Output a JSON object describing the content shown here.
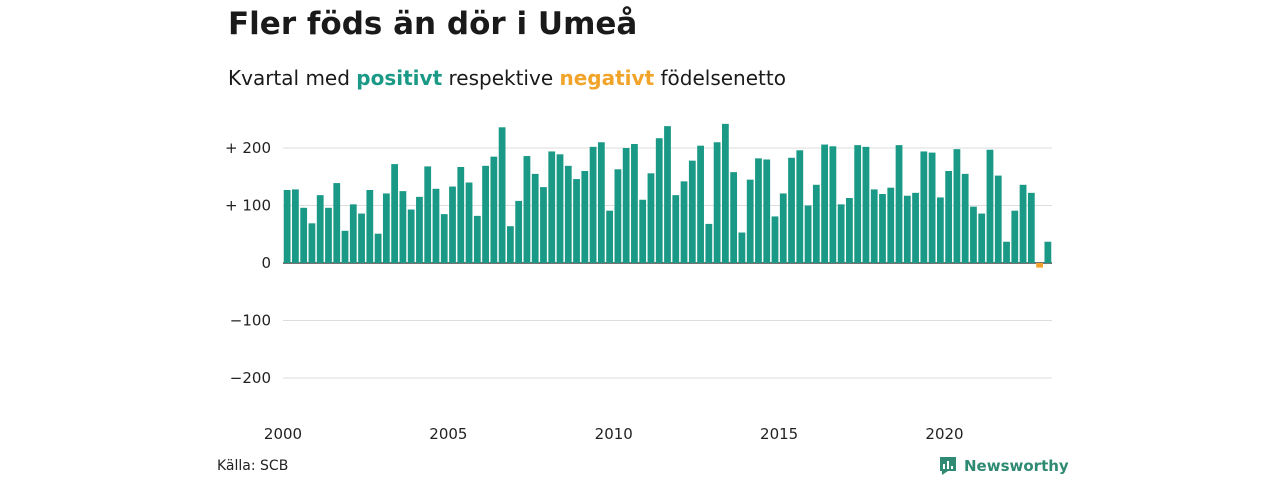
{
  "title": "Fler föds än dör i Umeå",
  "subtitle": {
    "part1": "Kvartal med",
    "positive": "positivt",
    "part2": "respektive",
    "negative": "negativt",
    "part3": "födelsenetto"
  },
  "source": "Källa: SCB",
  "brand": "Newsworthy",
  "colors": {
    "positive": "#1a9a86",
    "negative": "#f2a32a",
    "grid": "#dddddd",
    "axis": "#222222"
  },
  "chart_data": {
    "type": "bar",
    "x_start": "2000 Q1",
    "x_ticks": [
      "2000",
      "2005",
      "2010",
      "2015",
      "2020"
    ],
    "y_ticks": [
      200,
      100,
      0,
      -100,
      -200
    ],
    "y_tick_labels": [
      "+ 200",
      "+ 100",
      "0",
      "−100",
      "−200"
    ],
    "ylim": [
      -230,
      245
    ],
    "grid": true,
    "values": [
      127,
      128,
      96,
      69,
      118,
      96,
      139,
      56,
      102,
      86,
      127,
      51,
      121,
      172,
      125,
      93,
      115,
      168,
      129,
      85,
      133,
      167,
      140,
      82,
      169,
      185,
      236,
      64,
      108,
      186,
      155,
      132,
      194,
      189,
      169,
      146,
      160,
      202,
      210,
      91,
      163,
      200,
      207,
      110,
      156,
      217,
      238,
      118,
      142,
      178,
      204,
      68,
      210,
      242,
      158,
      53,
      145,
      182,
      180,
      81,
      121,
      183,
      196,
      100,
      136,
      206,
      203,
      102,
      113,
      205,
      202,
      128,
      120,
      131,
      205,
      117,
      122,
      194,
      192,
      114,
      160,
      198,
      155,
      98,
      86,
      197,
      152,
      37,
      91,
      136,
      122,
      -8,
      37
    ]
  }
}
